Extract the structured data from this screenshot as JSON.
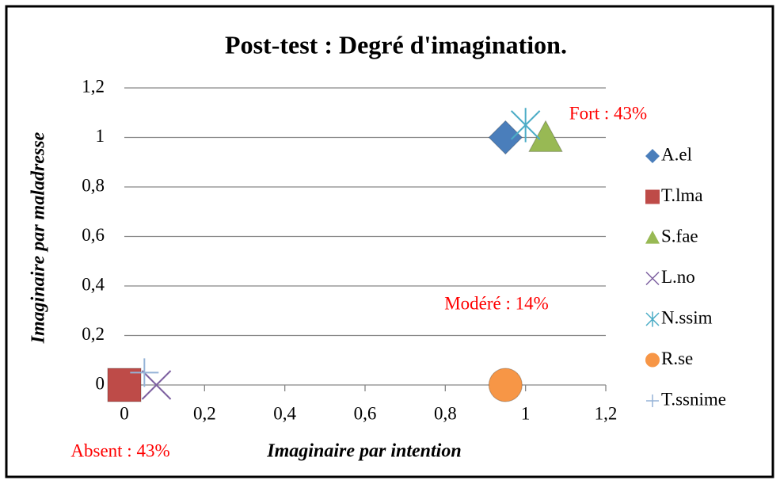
{
  "chart_data": {
    "type": "scatter",
    "title": "Post-test : Degré d'imagination.",
    "xlabel": "Imaginaire par intention",
    "ylabel": "Imaginaire par maladresse",
    "xlim": [
      0,
      1.2
    ],
    "ylim": [
      0,
      1.2
    ],
    "xticks": [
      0,
      {
        "value": 0.2,
        "label": "0,2"
      },
      {
        "value": 0.4,
        "label": "0,4"
      },
      {
        "value": 0.6,
        "label": "0,6"
      },
      {
        "value": 0.8,
        "label": "0,8"
      },
      1,
      {
        "value": 1.2,
        "label": "1,2"
      }
    ],
    "yticks": [
      0,
      {
        "value": 0.2,
        "label": "0,2"
      },
      {
        "value": 0.4,
        "label": "0,4"
      },
      {
        "value": 0.6,
        "label": "0,6"
      },
      {
        "value": 0.8,
        "label": "0,8"
      },
      1,
      {
        "value": 1.2,
        "label": "1,2"
      }
    ],
    "grid": true,
    "legend": "right",
    "series": [
      {
        "name": "A.el",
        "color": "#4a7ebb",
        "marker": "diamond",
        "x": [
          0.95
        ],
        "values": [
          1
        ]
      },
      {
        "name": "T.lma",
        "color": "#be4b48",
        "marker": "square",
        "x": [
          0
        ],
        "values": [
          0
        ]
      },
      {
        "name": "S.fae",
        "color": "#98b954",
        "marker": "triangle",
        "x": [
          1.05
        ],
        "values": [
          1
        ]
      },
      {
        "name": "L.no",
        "color": "#7d60a0",
        "marker": "x",
        "x": [
          0.08
        ],
        "values": [
          0
        ]
      },
      {
        "name": "N.ssim",
        "color": "#4bacc6",
        "marker": "star",
        "x": [
          1
        ],
        "values": [
          1.05
        ]
      },
      {
        "name": "R.se",
        "color": "#f79646",
        "marker": "circle",
        "x": [
          0.95
        ],
        "values": [
          0
        ]
      },
      {
        "name": "T.ssnime",
        "color": "#95b3d7",
        "marker": "plus",
        "x": [
          0.05
        ],
        "values": [
          0.05
        ]
      }
    ],
    "annotations": [
      "Fort : 43%",
      "Modéré : 14%",
      "Absent : 43%"
    ]
  }
}
